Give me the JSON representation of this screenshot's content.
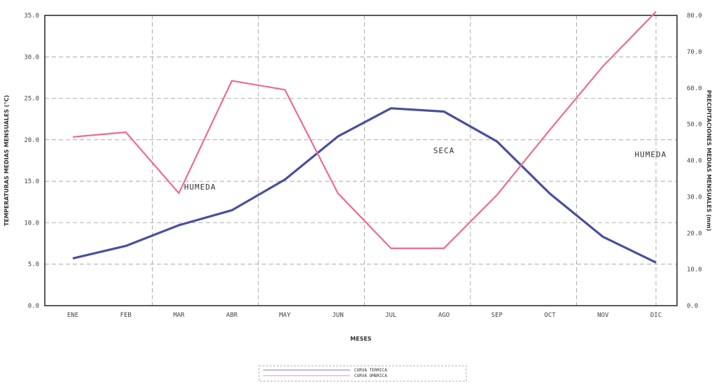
{
  "chart_data": {
    "type": "line",
    "categories": [
      "ENE",
      "FEB",
      "MAR",
      "ABR",
      "MAY",
      "JUN",
      "JUL",
      "AGO",
      "SEP",
      "OCT",
      "NOV",
      "DIC"
    ],
    "xlabel": "MESES",
    "ylabel_left": "TEMPERATURAS MEDIAS MENSUALES (°C)",
    "ylabel_right": "PRECIPITACIONES MEDIAS MENSUALES (mm)",
    "y_left": {
      "ticks": [
        "0.0",
        "5.0",
        "10.0",
        "15.0",
        "20.0",
        "25.0",
        "30.0",
        "35.0"
      ],
      "lim": [
        0,
        35
      ]
    },
    "y_right": {
      "ticks": [
        "0.0",
        "10.0",
        "20.0",
        "30.0",
        "40.0",
        "50.0",
        "60.0",
        "70.0",
        "80.0"
      ],
      "lim": [
        0,
        80
      ]
    },
    "grid": true,
    "legend_position": "bottom-center",
    "series": [
      {
        "name": "CURVA TERMICA",
        "axis": "left",
        "color": "#4a4f9c",
        "values": [
          5.7,
          7.2,
          9.7,
          11.5,
          15.2,
          20.4,
          23.8,
          23.4,
          19.8,
          13.5,
          8.3,
          5.2
        ]
      },
      {
        "name": "CURVA OMBRICA",
        "axis": "right",
        "color": "#f06a8e",
        "values": [
          46.5,
          47.8,
          31.0,
          62.0,
          59.5,
          31.0,
          15.8,
          15.8,
          30.5,
          48.5,
          66.0,
          81.0
        ]
      }
    ],
    "annotations": [
      {
        "text": "HUMEDA",
        "x_index": 2.4,
        "y": 32.0,
        "axis": "right"
      },
      {
        "text": "SECA",
        "x_index": 7.0,
        "y": 42.0,
        "axis": "right"
      },
      {
        "text": "HUMEDA",
        "x_index": 10.9,
        "y": 41.0,
        "axis": "right"
      }
    ]
  }
}
